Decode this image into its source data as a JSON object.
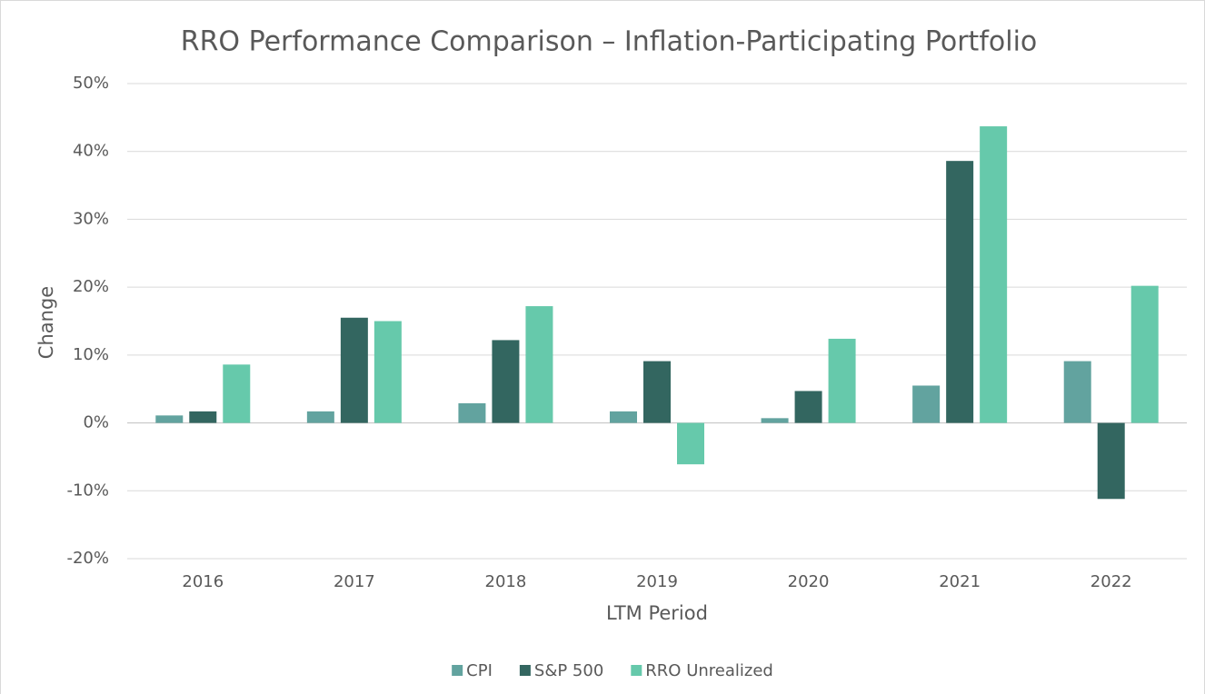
{
  "chart_data": {
    "type": "bar",
    "title": "RRO Performance Comparison – Inflation-Participating Portfolio",
    "x_label": "LTM Period",
    "y_label": "Change",
    "categories": [
      "2016",
      "2017",
      "2018",
      "2019",
      "2020",
      "2021",
      "2022"
    ],
    "series": [
      {
        "name": "CPI",
        "color": "#62a39f",
        "values": [
          1.1,
          1.7,
          2.9,
          1.7,
          0.7,
          5.5,
          9.1
        ]
      },
      {
        "name": "S&P 500",
        "color": "#336660",
        "values": [
          1.7,
          15.5,
          12.2,
          9.1,
          4.7,
          38.6,
          -11.2
        ]
      },
      {
        "name": "RRO Unrealized",
        "color": "#66c9ab",
        "values": [
          8.6,
          15.0,
          17.2,
          -6.1,
          12.4,
          43.7,
          20.2
        ]
      }
    ],
    "ylim": [
      -20,
      50
    ],
    "yticks": [
      {
        "value": -20,
        "label": "-20%"
      },
      {
        "value": -10,
        "label": "-10%"
      },
      {
        "value": 0,
        "label": "0%"
      },
      {
        "value": 10,
        "label": "10%"
      },
      {
        "value": 20,
        "label": "20%"
      },
      {
        "value": 30,
        "label": "30%"
      },
      {
        "value": 40,
        "label": "40%"
      },
      {
        "value": 50,
        "label": "50%"
      }
    ],
    "grid": true,
    "legend": "bottom"
  }
}
